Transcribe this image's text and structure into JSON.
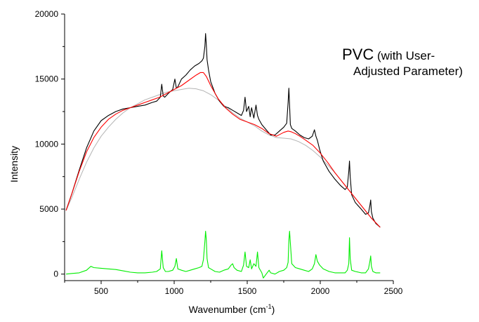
{
  "chart_data": {
    "type": "line",
    "title": "",
    "xlabel": "Wavenumber (cm",
    "xlabel_sup": "-1",
    "xlabel_close": ")",
    "ylabel": "Intensity",
    "xlim": [
      250,
      2500
    ],
    "ylim": [
      -500,
      20000
    ],
    "x_ticks": [
      500,
      1000,
      1500,
      2000,
      2500
    ],
    "x_tick_labels": [
      "500",
      "1000",
      "1500",
      "2000",
      "2500"
    ],
    "y_ticks": [
      0,
      5000,
      10000,
      15000,
      20000
    ],
    "y_tick_labels": [
      "0",
      "5000",
      "10000",
      "15000",
      "20000"
    ],
    "grid": false,
    "annotation": {
      "line1_big": "PVC",
      "line1_small": " (with User-",
      "line2": "Adjusted Parameter)"
    },
    "series": [
      {
        "key": "raw",
        "color": "#000000",
        "x": [
          260,
          300,
          350,
          400,
          450,
          500,
          550,
          600,
          650,
          700,
          750,
          800,
          850,
          880,
          905,
          915,
          925,
          935,
          960,
          990,
          1005,
          1015,
          1025,
          1050,
          1080,
          1110,
          1140,
          1170,
          1190,
          1200,
          1210,
          1215,
          1220,
          1225,
          1235,
          1250,
          1280,
          1310,
          1340,
          1370,
          1400,
          1430,
          1460,
          1475,
          1485,
          1495,
          1510,
          1520,
          1530,
          1545,
          1560,
          1570,
          1580,
          1600,
          1630,
          1660,
          1690,
          1720,
          1750,
          1770,
          1780,
          1785,
          1790,
          1795,
          1805,
          1830,
          1860,
          1890,
          1920,
          1945,
          1960,
          1970,
          1980,
          1995,
          2020,
          2060,
          2100,
          2140,
          2170,
          2185,
          2195,
          2200,
          2205,
          2215,
          2240,
          2280,
          2310,
          2330,
          2340,
          2345,
          2350,
          2360,
          2380,
          2400,
          2410
        ],
        "y": [
          4900,
          6200,
          8000,
          9700,
          11000,
          11800,
          12200,
          12500,
          12700,
          12800,
          12900,
          13000,
          13200,
          13300,
          13600,
          14600,
          13700,
          13600,
          13900,
          14200,
          15000,
          14300,
          14400,
          15000,
          15300,
          15700,
          16000,
          16200,
          16400,
          16600,
          17500,
          18500,
          17600,
          16500,
          15700,
          14800,
          13900,
          13300,
          12900,
          12800,
          12600,
          12400,
          12200,
          12600,
          13600,
          12500,
          12900,
          12100,
          12800,
          12000,
          13000,
          12200,
          11900,
          11500,
          11100,
          10700,
          10700,
          11000,
          11300,
          11600,
          13200,
          14300,
          13000,
          11500,
          11200,
          11000,
          10700,
          10500,
          10400,
          10600,
          11100,
          10600,
          10300,
          9600,
          8700,
          7900,
          7300,
          6800,
          6500,
          6700,
          7900,
          8700,
          7500,
          6100,
          5500,
          5000,
          4600,
          4700,
          5300,
          5700,
          4800,
          4300,
          3900,
          3700,
          3600
        ]
      },
      {
        "key": "fit",
        "color": "#ff0000",
        "x": [
          260,
          300,
          350,
          400,
          450,
          500,
          550,
          600,
          650,
          700,
          750,
          800,
          850,
          900,
          950,
          1000,
          1050,
          1100,
          1150,
          1180,
          1200,
          1220,
          1250,
          1300,
          1350,
          1400,
          1450,
          1500,
          1550,
          1600,
          1650,
          1700,
          1750,
          1780,
          1800,
          1830,
          1860,
          1900,
          1950,
          2000,
          2050,
          2100,
          2150,
          2200,
          2250,
          2300,
          2350,
          2410
        ],
        "y": [
          4900,
          6200,
          7900,
          9400,
          10500,
          11300,
          11900,
          12300,
          12600,
          12800,
          13000,
          13200,
          13400,
          13600,
          13900,
          14200,
          14500,
          14900,
          15300,
          15500,
          15500,
          15200,
          14500,
          13500,
          12800,
          12300,
          11900,
          11700,
          11500,
          11200,
          10800,
          10600,
          10900,
          11000,
          10950,
          10800,
          10600,
          10300,
          9900,
          9300,
          8600,
          7800,
          7100,
          6400,
          5700,
          5000,
          4300,
          3600
        ]
      },
      {
        "key": "baseline",
        "color": "#b4b4b4",
        "x": [
          260,
          300,
          350,
          400,
          450,
          500,
          550,
          600,
          650,
          700,
          750,
          800,
          850,
          900,
          950,
          1000,
          1050,
          1100,
          1150,
          1200,
          1250,
          1300,
          1350,
          1400,
          1450,
          1500,
          1550,
          1600,
          1650,
          1700,
          1750,
          1800,
          1850,
          1900,
          1950,
          2000,
          2050,
          2100,
          2150,
          2200,
          2250,
          2300,
          2350,
          2410
        ],
        "y": [
          4900,
          5900,
          7300,
          8600,
          9700,
          10600,
          11300,
          11900,
          12400,
          12800,
          13100,
          13400,
          13600,
          13800,
          14000,
          14100,
          14200,
          14300,
          14250,
          14100,
          13800,
          13400,
          12900,
          12400,
          12000,
          11700,
          11400,
          11000,
          10700,
          10500,
          10450,
          10400,
          10200,
          9900,
          9500,
          9000,
          8400,
          7800,
          7100,
          6400,
          5700,
          5000,
          4300,
          3600
        ]
      },
      {
        "key": "residual",
        "color": "#00ee00",
        "x": [
          260,
          300,
          350,
          400,
          430,
          450,
          500,
          550,
          600,
          650,
          700,
          750,
          800,
          850,
          880,
          905,
          915,
          925,
          940,
          960,
          990,
          1005,
          1015,
          1025,
          1050,
          1080,
          1110,
          1140,
          1170,
          1190,
          1200,
          1210,
          1215,
          1220,
          1225,
          1235,
          1250,
          1280,
          1310,
          1340,
          1370,
          1390,
          1400,
          1410,
          1430,
          1460,
          1475,
          1485,
          1495,
          1510,
          1520,
          1530,
          1545,
          1560,
          1570,
          1580,
          1600,
          1610,
          1630,
          1650,
          1660,
          1690,
          1720,
          1750,
          1770,
          1780,
          1785,
          1790,
          1795,
          1805,
          1830,
          1860,
          1890,
          1920,
          1945,
          1960,
          1970,
          1980,
          1995,
          2020,
          2060,
          2100,
          2140,
          2170,
          2185,
          2195,
          2200,
          2205,
          2215,
          2240,
          2280,
          2310,
          2330,
          2340,
          2345,
          2350,
          2360,
          2380,
          2400,
          2410
        ],
        "y": [
          0,
          50,
          100,
          300,
          600,
          500,
          450,
          400,
          350,
          250,
          150,
          100,
          100,
          150,
          200,
          400,
          1800,
          500,
          200,
          200,
          300,
          600,
          1200,
          400,
          300,
          200,
          300,
          400,
          500,
          600,
          1100,
          2500,
          3300,
          2600,
          1200,
          500,
          400,
          200,
          150,
          300,
          400,
          700,
          800,
          500,
          300,
          200,
          700,
          1700,
          600,
          500,
          1100,
          400,
          800,
          600,
          1700,
          500,
          100,
          -300,
          0,
          300,
          100,
          0,
          200,
          300,
          500,
          900,
          2600,
          3300,
          2400,
          800,
          500,
          400,
          300,
          200,
          400,
          800,
          1500,
          1000,
          700,
          400,
          200,
          100,
          100,
          100,
          300,
          800,
          2800,
          1200,
          300,
          200,
          100,
          100,
          400,
          1000,
          1400,
          600,
          200,
          100,
          100,
          100
        ]
      }
    ]
  }
}
